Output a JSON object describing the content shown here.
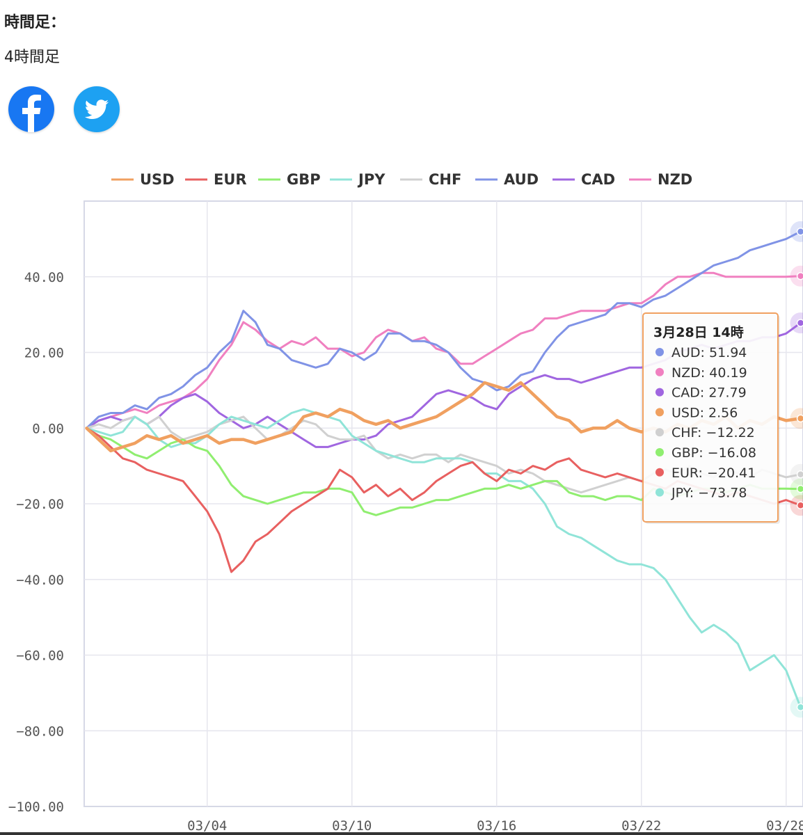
{
  "page": {
    "timeframe_label": "時間足：",
    "timeframe_value": "4時間足"
  },
  "share": {
    "facebook_icon": "facebook-icon",
    "twitter_icon": "twitter-icon",
    "facebook_color": "#1877F2",
    "twitter_color": "#1DA1F2"
  },
  "chart_data": {
    "type": "line",
    "title": "",
    "xlabel": "",
    "ylabel": "",
    "ylim": [
      -100,
      60
    ],
    "y_ticks": [
      40,
      20,
      0,
      -20,
      -40,
      -60,
      -80,
      -100
    ],
    "y_tick_labels": [
      "40.00",
      "20.00",
      "0.00",
      "−20.00",
      "−40.00",
      "−60.00",
      "−80.00",
      "−100.00"
    ],
    "x_tick_labels": [
      "03/04",
      "03/10",
      "03/16",
      "03/22",
      "03/28"
    ],
    "x_tick_days": [
      3,
      9,
      15,
      21,
      27
    ],
    "x_range_days": [
      -2.1,
      27.7
    ],
    "grid": true,
    "legend_position": "top",
    "series": [
      {
        "name": "USD",
        "color": "#F0A060",
        "width": 4.5,
        "x": [
          -2,
          -1.5,
          -1,
          -0.5,
          0,
          0.5,
          1,
          1.5,
          2,
          2.5,
          3,
          3.5,
          4,
          4.5,
          5,
          5.5,
          6,
          6.5,
          7,
          7.5,
          8,
          8.5,
          9,
          9.5,
          10,
          10.5,
          11,
          11.5,
          12,
          12.5,
          13,
          13.5,
          14,
          14.5,
          15,
          15.5,
          16,
          16.5,
          17,
          17.5,
          18,
          18.5,
          19,
          19.5,
          20,
          20.5,
          21,
          21.5,
          22,
          22.5,
          23,
          23.5,
          24,
          24.5,
          25,
          25.5,
          26,
          26.5,
          27,
          27.6
        ],
        "y": [
          0,
          -3,
          -6,
          -5,
          -4,
          -2,
          -3,
          -2,
          -4,
          -3,
          -2,
          -4,
          -3,
          -3,
          -4,
          -3,
          -2,
          -1,
          3,
          4,
          3,
          5,
          4,
          2,
          1,
          2,
          0,
          1,
          2,
          3,
          5,
          7,
          9,
          12,
          11,
          10,
          12,
          9,
          6,
          3,
          2,
          -1,
          0,
          0,
          2,
          0,
          -1,
          0,
          -1,
          1,
          0,
          2,
          1,
          3,
          0,
          2,
          1,
          3,
          2,
          2.56
        ]
      },
      {
        "name": "EUR",
        "color": "#E86060",
        "width": 3,
        "x": [
          -2,
          -1.5,
          -1,
          -0.5,
          0,
          0.5,
          1,
          1.5,
          2,
          2.5,
          3,
          3.5,
          4,
          4.5,
          5,
          5.5,
          6,
          6.5,
          7,
          7.5,
          8,
          8.5,
          9,
          9.5,
          10,
          10.5,
          11,
          11.5,
          12,
          12.5,
          13,
          13.5,
          14,
          14.5,
          15,
          15.5,
          16,
          16.5,
          17,
          17.5,
          18,
          18.5,
          19,
          19.5,
          20,
          20.5,
          21,
          21.5,
          22,
          22.5,
          23,
          23.5,
          24,
          24.5,
          25,
          25.5,
          26,
          26.5,
          27,
          27.6
        ],
        "y": [
          0,
          -2,
          -5,
          -8,
          -9,
          -11,
          -12,
          -13,
          -14,
          -18,
          -22,
          -28,
          -38,
          -35,
          -30,
          -28,
          -25,
          -22,
          -20,
          -18,
          -16,
          -11,
          -13,
          -17,
          -15,
          -18,
          -16,
          -19,
          -17,
          -14,
          -12,
          -10,
          -9,
          -12,
          -14,
          -11,
          -12,
          -10,
          -11,
          -9,
          -8,
          -11,
          -12,
          -13,
          -12,
          -13,
          -14,
          -15,
          -16,
          -14,
          -15,
          -16,
          -17,
          -18,
          -17,
          -18,
          -19,
          -20,
          -19,
          -20.41
        ]
      },
      {
        "name": "GBP",
        "color": "#90EE70",
        "width": 3,
        "x": [
          -2,
          -1.5,
          -1,
          -0.5,
          0,
          0.5,
          1,
          1.5,
          2,
          2.5,
          3,
          3.5,
          4,
          4.5,
          5,
          5.5,
          6,
          6.5,
          7,
          7.5,
          8,
          8.5,
          9,
          9.5,
          10,
          10.5,
          11,
          11.5,
          12,
          12.5,
          13,
          13.5,
          14,
          14.5,
          15,
          15.5,
          16,
          16.5,
          17,
          17.5,
          18,
          18.5,
          19,
          19.5,
          20,
          20.5,
          21,
          21.5,
          22,
          22.5,
          23,
          23.5,
          24,
          24.5,
          25,
          25.5,
          26,
          26.5,
          27,
          27.6
        ],
        "y": [
          0,
          -2,
          -3,
          -5,
          -7,
          -8,
          -6,
          -4,
          -3,
          -5,
          -6,
          -10,
          -15,
          -18,
          -19,
          -20,
          -19,
          -18,
          -17,
          -17,
          -16,
          -16,
          -17,
          -22,
          -23,
          -22,
          -21,
          -21,
          -20,
          -19,
          -19,
          -18,
          -17,
          -16,
          -16,
          -15,
          -16,
          -15,
          -14,
          -14,
          -17,
          -18,
          -18,
          -19,
          -18,
          -18,
          -19,
          -16,
          -17,
          -18,
          -17,
          -16,
          -16,
          -17,
          -16,
          -15,
          -16,
          -16,
          -16,
          -16.08
        ]
      },
      {
        "name": "JPY",
        "color": "#90E4D8",
        "width": 3,
        "x": [
          -2,
          -1.5,
          -1,
          -0.5,
          0,
          0.5,
          1,
          1.5,
          2,
          2.5,
          3,
          3.5,
          4,
          4.5,
          5,
          5.5,
          6,
          6.5,
          7,
          7.5,
          8,
          8.5,
          9,
          9.5,
          10,
          10.5,
          11,
          11.5,
          12,
          12.5,
          13,
          13.5,
          14,
          14.5,
          15,
          15.5,
          16,
          16.5,
          17,
          17.5,
          18,
          18.5,
          19,
          19.5,
          20,
          20.5,
          21,
          21.5,
          22,
          22.5,
          23,
          23.5,
          24,
          24.5,
          25,
          25.5,
          26,
          26.5,
          27,
          27.6
        ],
        "y": [
          0,
          -1,
          -2,
          -1,
          3,
          1,
          -3,
          -5,
          -4,
          -4,
          -2,
          1,
          3,
          2,
          1,
          0,
          2,
          4,
          5,
          4,
          3,
          2,
          -2,
          -4,
          -6,
          -7,
          -8,
          -9,
          -9,
          -8,
          -8,
          -8,
          -9,
          -12,
          -12,
          -14,
          -14,
          -16,
          -20,
          -26,
          -28,
          -29,
          -31,
          -33,
          -35,
          -36,
          -36,
          -37,
          -40,
          -45,
          -50,
          -54,
          -52,
          -54,
          -57,
          -64,
          -62,
          -60,
          -64,
          -73.78
        ]
      },
      {
        "name": "CHF",
        "color": "#D0D0D0",
        "width": 3,
        "x": [
          -2,
          -1.5,
          -1,
          -0.5,
          0,
          0.5,
          1,
          1.5,
          2,
          2.5,
          3,
          3.5,
          4,
          4.5,
          5,
          5.5,
          6,
          6.5,
          7,
          7.5,
          8,
          8.5,
          9,
          9.5,
          10,
          10.5,
          11,
          11.5,
          12,
          12.5,
          13,
          13.5,
          14,
          14.5,
          15,
          15.5,
          16,
          16.5,
          17,
          17.5,
          18,
          18.5,
          19,
          19.5,
          20,
          20.5,
          21,
          21.5,
          22,
          22.5,
          23,
          23.5,
          24,
          24.5,
          25,
          25.5,
          26,
          26.5,
          27,
          27.6
        ],
        "y": [
          0,
          1,
          0,
          2,
          3,
          1,
          3,
          -1,
          -3,
          -2,
          -1,
          1,
          2,
          3,
          0,
          -3,
          -2,
          0,
          2,
          1,
          -2,
          -3,
          -3,
          -2,
          -6,
          -8,
          -7,
          -8,
          -7,
          -7,
          -9,
          -7,
          -8,
          -9,
          -10,
          -12,
          -11,
          -12,
          -14,
          -15,
          -16,
          -17,
          -16,
          -15,
          -14,
          -13,
          -14,
          -12,
          -11,
          -12,
          -10,
          -12,
          -13,
          -11,
          -12,
          -13,
          -11,
          -12,
          -13,
          -12.22
        ]
      },
      {
        "name": "AUD",
        "color": "#8093E6",
        "width": 3,
        "x": [
          -2,
          -1.5,
          -1,
          -0.5,
          0,
          0.5,
          1,
          1.5,
          2,
          2.5,
          3,
          3.5,
          4,
          4.5,
          5,
          5.5,
          6,
          6.5,
          7,
          7.5,
          8,
          8.5,
          9,
          9.5,
          10,
          10.5,
          11,
          11.5,
          12,
          12.5,
          13,
          13.5,
          14,
          14.5,
          15,
          15.5,
          16,
          16.5,
          17,
          17.5,
          18,
          18.5,
          19,
          19.5,
          20,
          20.5,
          21,
          21.5,
          22,
          22.5,
          23,
          23.5,
          24,
          24.5,
          25,
          25.5,
          26,
          26.5,
          27,
          27.6
        ],
        "y": [
          0,
          3,
          4,
          4,
          6,
          5,
          8,
          9,
          11,
          14,
          16,
          20,
          23,
          31,
          28,
          22,
          21,
          18,
          17,
          16,
          17,
          21,
          20,
          18,
          20,
          25,
          25,
          23,
          23,
          22,
          20,
          16,
          13,
          12,
          10,
          11,
          14,
          15,
          20,
          24,
          27,
          28,
          29,
          30,
          33,
          33,
          32,
          34,
          35,
          37,
          39,
          41,
          43,
          44,
          45,
          47,
          48,
          49,
          50,
          51.94
        ]
      },
      {
        "name": "CAD",
        "color": "#A066E0",
        "width": 3,
        "x": [
          -2,
          -1.5,
          -1,
          -0.5,
          0,
          0.5,
          1,
          1.5,
          2,
          2.5,
          3,
          3.5,
          4,
          4.5,
          5,
          5.5,
          6,
          6.5,
          7,
          7.5,
          8,
          8.5,
          9,
          9.5,
          10,
          10.5,
          11,
          11.5,
          12,
          12.5,
          13,
          13.5,
          14,
          14.5,
          15,
          15.5,
          16,
          16.5,
          17,
          17.5,
          18,
          18.5,
          19,
          19.5,
          20,
          20.5,
          21,
          21.5,
          22,
          22.5,
          23,
          23.5,
          24,
          24.5,
          25,
          25.5,
          26,
          26.5,
          27,
          27.6
        ],
        "y": [
          0,
          2,
          3,
          2,
          3,
          1,
          3,
          6,
          8,
          9,
          7,
          4,
          2,
          0,
          1,
          3,
          1,
          -1,
          -3,
          -5,
          -5,
          -4,
          -3,
          -3,
          -2,
          1,
          2,
          3,
          6,
          9,
          10,
          9,
          8,
          6,
          5,
          9,
          11,
          13,
          14,
          13,
          13,
          12,
          13,
          14,
          15,
          16,
          16,
          17,
          18,
          20,
          21,
          22,
          21,
          22,
          23,
          23,
          24,
          24,
          25,
          27.79
        ]
      },
      {
        "name": "NZD",
        "color": "#F080C0",
        "width": 3,
        "x": [
          -2,
          -1.5,
          -1,
          -0.5,
          0,
          0.5,
          1,
          1.5,
          2,
          2.5,
          3,
          3.5,
          4,
          4.5,
          5,
          5.5,
          6,
          6.5,
          7,
          7.5,
          8,
          8.5,
          9,
          9.5,
          10,
          10.5,
          11,
          11.5,
          12,
          12.5,
          13,
          13.5,
          14,
          14.5,
          15,
          15.5,
          16,
          16.5,
          17,
          17.5,
          18,
          18.5,
          19,
          19.5,
          20,
          20.5,
          21,
          21.5,
          22,
          22.5,
          23,
          23.5,
          24,
          24.5,
          25,
          25.5,
          26,
          26.5,
          27,
          27.6
        ],
        "y": [
          0,
          2,
          3,
          4,
          5,
          4,
          6,
          7,
          8,
          10,
          13,
          18,
          22,
          28,
          26,
          23,
          21,
          23,
          22,
          24,
          21,
          21,
          19,
          20,
          24,
          26,
          25,
          23,
          24,
          21,
          20,
          17,
          17,
          19,
          21,
          23,
          25,
          26,
          29,
          29,
          30,
          31,
          31,
          31,
          32,
          33,
          33,
          35,
          38,
          40,
          40,
          41,
          41,
          40,
          40,
          40,
          40,
          40,
          40,
          40.19
        ]
      }
    ],
    "tooltip": {
      "title": "3月28日 14時",
      "rows": [
        {
          "name": "AUD",
          "value": "51.94",
          "color": "#8093E6"
        },
        {
          "name": "NZD",
          "value": "40.19",
          "color": "#F080C0"
        },
        {
          "name": "CAD",
          "value": "27.79",
          "color": "#A066E0"
        },
        {
          "name": "USD",
          "value": "2.56",
          "color": "#F0A060"
        },
        {
          "name": "CHF",
          "value": "−12.22",
          "color": "#D0D0D0"
        },
        {
          "name": "GBP",
          "value": "−16.08",
          "color": "#90EE70"
        },
        {
          "name": "EUR",
          "value": "−20.41",
          "color": "#E86060"
        },
        {
          "name": "JPY",
          "value": "−73.78",
          "color": "#90E4D8"
        }
      ]
    }
  }
}
